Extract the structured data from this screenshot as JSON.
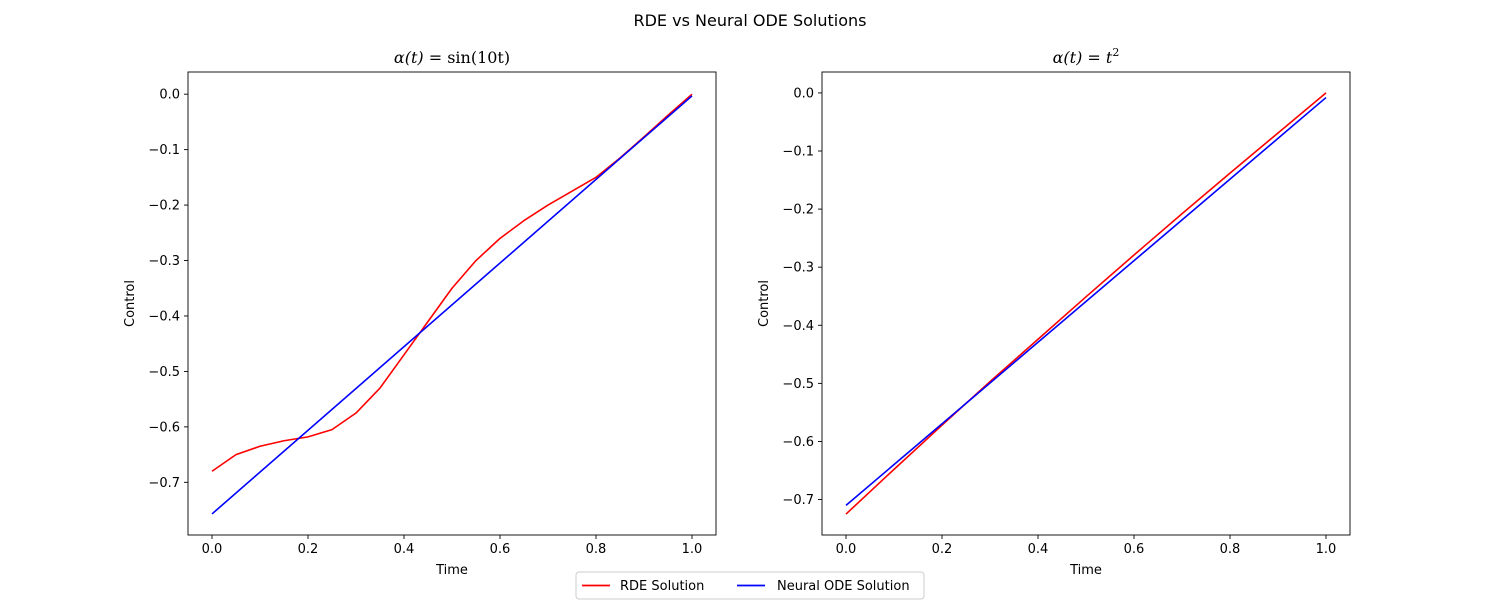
{
  "suptitle": "RDE vs Neural ODE Solutions",
  "legend": {
    "placement": "lower-center",
    "entries": [
      {
        "label": "RDE Solution",
        "color": "#ff0000"
      },
      {
        "label": "Neural ODE Solution",
        "color": "#0000ff"
      }
    ]
  },
  "chart_data": [
    {
      "type": "line",
      "title": "α(t) = sin(10t)",
      "title_parts": {
        "lhs": "α(t) = ",
        "rhs": "sin(10t)"
      },
      "xlabel": "Time",
      "ylabel": "Control",
      "xlim": [
        -0.05,
        1.05
      ],
      "ylim": [
        -0.795,
        0.04
      ],
      "xticks": [
        0.0,
        0.2,
        0.4,
        0.6,
        0.8,
        1.0
      ],
      "xtick_labels": [
        "0.0",
        "0.2",
        "0.4",
        "0.6",
        "0.8",
        "1.0"
      ],
      "yticks": [
        0.0,
        -0.1,
        -0.2,
        -0.3,
        -0.4,
        -0.5,
        -0.6,
        -0.7
      ],
      "ytick_labels": [
        "0.0",
        "−0.1",
        "−0.2",
        "−0.3",
        "−0.4",
        "−0.5",
        "−0.6",
        "−0.7"
      ],
      "grid": false,
      "series": [
        {
          "name": "RDE Solution",
          "color": "#ff0000",
          "x": [
            0.0,
            0.05,
            0.1,
            0.15,
            0.2,
            0.25,
            0.3,
            0.35,
            0.4,
            0.45,
            0.5,
            0.55,
            0.6,
            0.65,
            0.7,
            0.75,
            0.8,
            0.85,
            0.9,
            0.95,
            1.0
          ],
          "y": [
            -0.68,
            -0.65,
            -0.635,
            -0.625,
            -0.618,
            -0.605,
            -0.575,
            -0.53,
            -0.47,
            -0.41,
            -0.35,
            -0.3,
            -0.26,
            -0.228,
            -0.2,
            -0.175,
            -0.15,
            -0.115,
            -0.077,
            -0.038,
            0.0
          ]
        },
        {
          "name": "Neural ODE Solution",
          "color": "#0000ff",
          "x": [
            0.0,
            1.0
          ],
          "y": [
            -0.757,
            -0.003
          ]
        }
      ]
    },
    {
      "type": "line",
      "title": "α(t) = t²",
      "title_parts": {
        "lhs": "α(t) = ",
        "rhs": "t",
        "sup": "2"
      },
      "xlabel": "Time",
      "ylabel": "Control",
      "xlim": [
        -0.05,
        1.05
      ],
      "ylim": [
        -0.761,
        0.036
      ],
      "xticks": [
        0.0,
        0.2,
        0.4,
        0.6,
        0.8,
        1.0
      ],
      "xtick_labels": [
        "0.0",
        "0.2",
        "0.4",
        "0.6",
        "0.8",
        "1.0"
      ],
      "yticks": [
        0.0,
        -0.1,
        -0.2,
        -0.3,
        -0.4,
        -0.5,
        -0.6,
        -0.7
      ],
      "ytick_labels": [
        "0.0",
        "−0.1",
        "−0.2",
        "−0.3",
        "−0.4",
        "−0.5",
        "−0.6",
        "−0.7"
      ],
      "grid": false,
      "series": [
        {
          "name": "RDE Solution",
          "color": "#ff0000",
          "x": [
            0.0,
            0.1,
            0.2,
            0.3,
            0.4,
            0.5,
            0.6,
            0.7,
            0.8,
            0.9,
            1.0
          ],
          "y": [
            -0.725,
            -0.648,
            -0.572,
            -0.497,
            -0.424,
            -0.351,
            -0.279,
            -0.208,
            -0.138,
            -0.069,
            0.0
          ]
        },
        {
          "name": "Neural ODE Solution",
          "color": "#0000ff",
          "x": [
            0.0,
            1.0
          ],
          "y": [
            -0.71,
            -0.008
          ]
        }
      ]
    }
  ]
}
